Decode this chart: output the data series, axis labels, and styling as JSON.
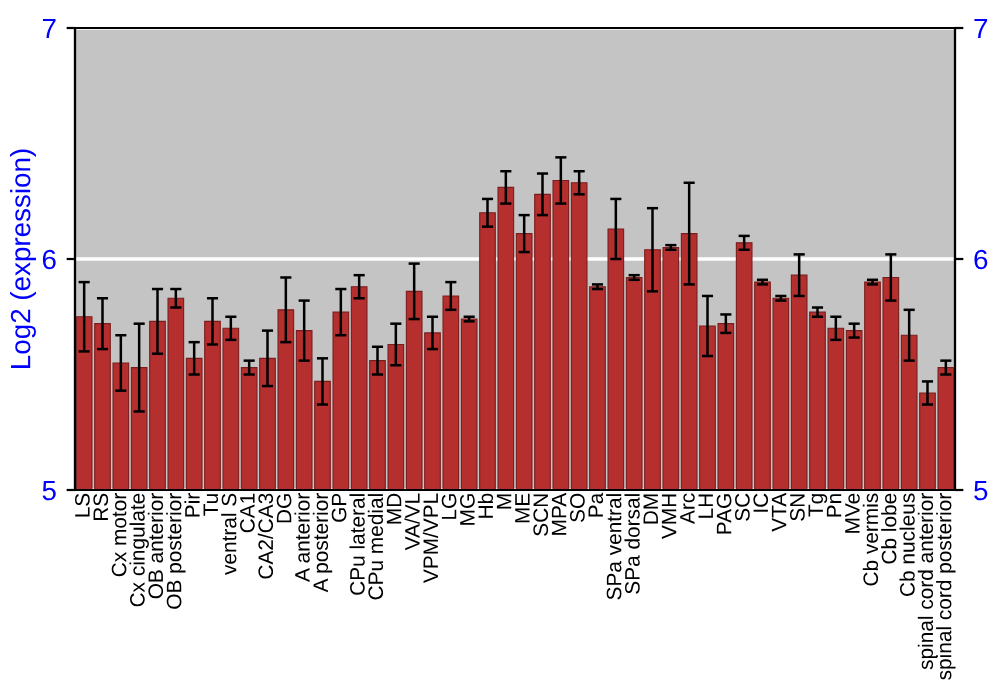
{
  "chart_data": {
    "type": "bar",
    "ylabel": "Log2 (expression)",
    "categories": [
      "LS",
      "RS",
      "Cx motor",
      "Cx cingulate",
      "OB anterior",
      "OB posterior",
      "Pir",
      "Tu",
      "ventral S",
      "CA1",
      "CA2/CA3",
      "DG",
      "A anterior",
      "A posterior",
      "GP",
      "CPu lateral",
      "CPu medial",
      "MD",
      "VA/VL",
      "VPM/VPL",
      "LG",
      "MG",
      "Hb",
      "M",
      "ME",
      "SCN",
      "MPA",
      "SO",
      "Pa",
      "SPa ventral",
      "SPa dorsal",
      "DM",
      "VMH",
      "Arc",
      "LH",
      "PAG",
      "SC",
      "IC",
      "VTA",
      "SN",
      "Tg",
      "Pn",
      "MVe",
      "Cb vermis",
      "Cb lobe",
      "Cb nucleus",
      "spinal cord anterior",
      "spinal cord posterior"
    ],
    "values": [
      5.75,
      5.72,
      5.55,
      5.53,
      5.73,
      5.83,
      5.57,
      5.73,
      5.7,
      5.53,
      5.57,
      5.78,
      5.69,
      5.47,
      5.77,
      5.88,
      5.56,
      5.63,
      5.86,
      5.68,
      5.84,
      5.74,
      6.2,
      6.31,
      6.11,
      6.28,
      6.34,
      6.33,
      5.88,
      6.13,
      5.92,
      6.04,
      6.05,
      6.11,
      5.71,
      5.72,
      6.07,
      5.9,
      5.83,
      5.93,
      5.77,
      5.7,
      5.69,
      5.9,
      5.92,
      5.67,
      5.42,
      5.53
    ],
    "errors": [
      0.15,
      0.11,
      0.12,
      0.19,
      0.14,
      0.04,
      0.07,
      0.1,
      0.05,
      0.03,
      0.12,
      0.14,
      0.13,
      0.1,
      0.1,
      0.05,
      0.06,
      0.09,
      0.12,
      0.07,
      0.06,
      0.01,
      0.06,
      0.07,
      0.08,
      0.09,
      0.1,
      0.05,
      0.01,
      0.13,
      0.01,
      0.18,
      0.01,
      0.22,
      0.13,
      0.04,
      0.03,
      0.01,
      0.01,
      0.09,
      0.02,
      0.05,
      0.03,
      0.01,
      0.1,
      0.11,
      0.05,
      0.03
    ],
    "color": "#b52f2f",
    "ylim": [
      5,
      7
    ],
    "yticks": [
      5,
      6,
      7
    ],
    "y2lim": [
      5,
      7
    ],
    "y2ticks": [
      5,
      6,
      7
    ],
    "grid": "y"
  }
}
